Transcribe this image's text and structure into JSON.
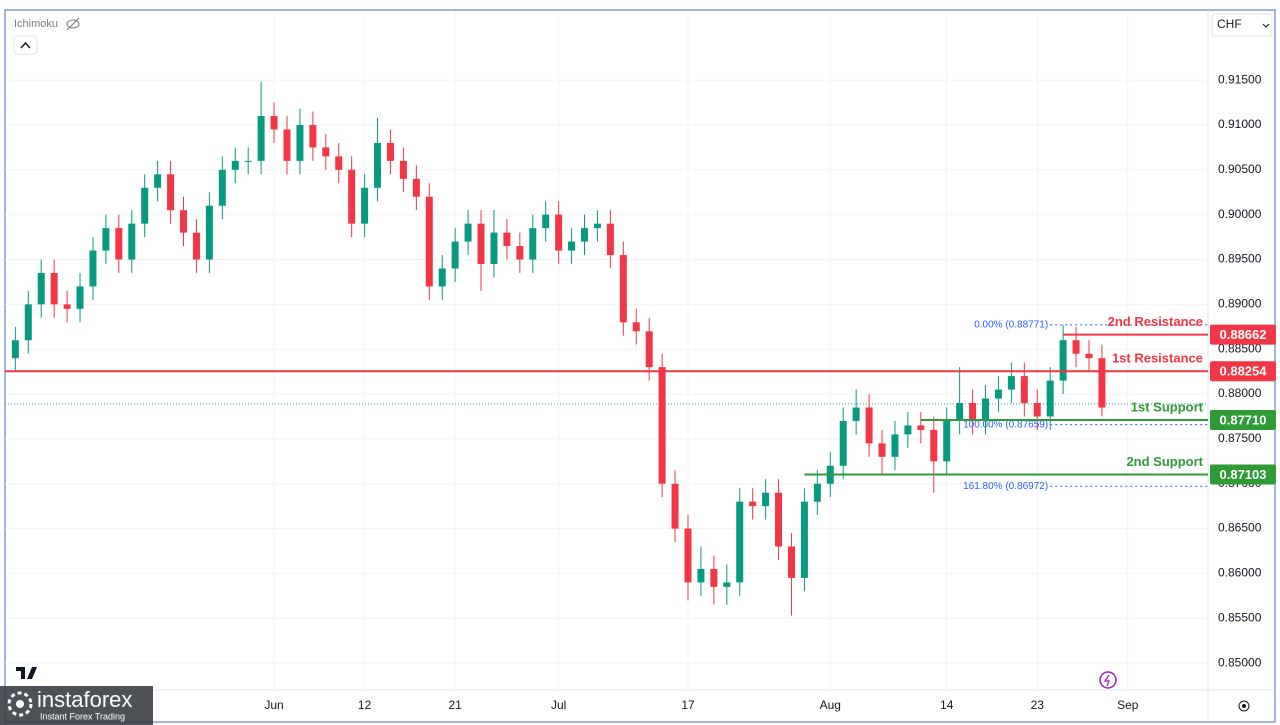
{
  "chart_data": {
    "type": "candlestick",
    "indicator": "Ichimoku",
    "currency": "CHF",
    "up_color": "#089981",
    "down_color": "#f23645",
    "xlim": [
      -0.8,
      92.2
    ],
    "ylim": [
      0.847,
      0.9226
    ],
    "xticks": [
      {
        "value": 20,
        "label": "Jun"
      },
      {
        "value": 27,
        "label": "12"
      },
      {
        "value": 34,
        "label": "21"
      },
      {
        "value": 42,
        "label": "Jul"
      },
      {
        "value": 52,
        "label": "17"
      },
      {
        "value": 63,
        "label": "Aug"
      },
      {
        "value": 72,
        "label": "14"
      },
      {
        "value": 79,
        "label": "23"
      },
      {
        "value": 86,
        "label": "Sep"
      }
    ],
    "yticks": [
      {
        "value": 0.85,
        "label": "0.85000"
      },
      {
        "value": 0.855,
        "label": "0.85500"
      },
      {
        "value": 0.86,
        "label": "0.86000"
      },
      {
        "value": 0.865,
        "label": "0.86500"
      },
      {
        "value": 0.87,
        "label": "0.87000"
      },
      {
        "value": 0.875,
        "label": "0.87500"
      },
      {
        "value": 0.88,
        "label": "0.88000"
      },
      {
        "value": 0.885,
        "label": "0.88500"
      },
      {
        "value": 0.89,
        "label": "0.89000"
      },
      {
        "value": 0.895,
        "label": "0.89500"
      },
      {
        "value": 0.9,
        "label": "0.90000"
      },
      {
        "value": 0.905,
        "label": "0.90500"
      },
      {
        "value": 0.91,
        "label": "0.91000"
      },
      {
        "value": 0.915,
        "label": "0.91500"
      }
    ],
    "x": [
      0,
      1,
      2,
      3,
      4,
      5,
      6,
      7,
      8,
      9,
      10,
      11,
      12,
      13,
      14,
      15,
      16,
      17,
      18,
      19,
      20,
      21,
      22,
      23,
      24,
      25,
      26,
      27,
      28,
      29,
      30,
      31,
      32,
      33,
      34,
      35,
      36,
      37,
      38,
      39,
      40,
      41,
      42,
      43,
      44,
      45,
      46,
      47,
      48,
      49,
      50,
      51,
      52,
      53,
      54,
      55,
      56,
      57,
      58,
      59,
      60,
      61,
      62,
      63,
      64,
      65,
      66,
      67,
      68,
      69,
      70,
      71,
      72,
      73,
      74,
      75,
      76,
      77,
      78,
      79,
      80,
      81,
      82,
      83,
      84
    ],
    "open": [
      0.884,
      0.886,
      0.89,
      0.8935,
      0.89,
      0.8895,
      0.892,
      0.896,
      0.8985,
      0.895,
      0.899,
      0.903,
      0.9045,
      0.9005,
      0.898,
      0.895,
      0.901,
      0.905,
      0.906,
      0.906,
      0.911,
      0.9095,
      0.906,
      0.91,
      0.9075,
      0.9065,
      0.905,
      0.899,
      0.903,
      0.908,
      0.906,
      0.904,
      0.902,
      0.892,
      0.894,
      0.897,
      0.899,
      0.8945,
      0.898,
      0.8965,
      0.895,
      0.8985,
      0.9,
      0.896,
      0.897,
      0.8985,
      0.899,
      0.8955,
      0.888,
      0.887,
      0.883,
      0.87,
      0.865,
      0.859,
      0.8605,
      0.8585,
      0.859,
      0.868,
      0.8675,
      0.869,
      0.863,
      0.8595,
      0.868,
      0.87,
      0.872,
      0.877,
      0.8785,
      0.8745,
      0.873,
      0.8755,
      0.8765,
      0.876,
      0.8725,
      0.877,
      0.879,
      0.877,
      0.8795,
      0.8805,
      0.882,
      0.879,
      0.8775,
      0.8815,
      0.886,
      0.8845,
      0.884
    ],
    "high": [
      0.8875,
      0.8915,
      0.895,
      0.895,
      0.8915,
      0.8935,
      0.8975,
      0.9,
      0.9,
      0.9005,
      0.9045,
      0.906,
      0.906,
      0.902,
      0.8995,
      0.9025,
      0.9065,
      0.9075,
      0.9075,
      0.9148,
      0.9125,
      0.911,
      0.9118,
      0.9115,
      0.909,
      0.908,
      0.9065,
      0.9045,
      0.9108,
      0.9095,
      0.9075,
      0.9055,
      0.9035,
      0.8955,
      0.8985,
      0.9005,
      0.9005,
      0.9005,
      0.8995,
      0.898,
      0.9,
      0.9015,
      0.9015,
      0.8985,
      0.9,
      0.9005,
      0.9005,
      0.897,
      0.8895,
      0.8885,
      0.8845,
      0.8715,
      0.8665,
      0.863,
      0.862,
      0.861,
      0.8695,
      0.8695,
      0.8705,
      0.8705,
      0.8645,
      0.8695,
      0.8715,
      0.8735,
      0.8785,
      0.8805,
      0.88,
      0.876,
      0.877,
      0.878,
      0.878,
      0.8775,
      0.8785,
      0.883,
      0.8805,
      0.881,
      0.882,
      0.8835,
      0.8835,
      0.8805,
      0.883,
      0.8877,
      0.8875,
      0.886,
      0.8855
    ],
    "low": [
      0.8825,
      0.8845,
      0.8885,
      0.8885,
      0.888,
      0.888,
      0.8905,
      0.8945,
      0.8935,
      0.8935,
      0.8975,
      0.9015,
      0.899,
      0.8965,
      0.8935,
      0.8935,
      0.8995,
      0.9035,
      0.9045,
      0.9045,
      0.908,
      0.9045,
      0.9045,
      0.906,
      0.905,
      0.9035,
      0.8975,
      0.8975,
      0.9015,
      0.9045,
      0.9025,
      0.9005,
      0.8905,
      0.8905,
      0.8925,
      0.8955,
      0.8915,
      0.893,
      0.895,
      0.8935,
      0.8935,
      0.897,
      0.8945,
      0.8945,
      0.8955,
      0.897,
      0.894,
      0.8865,
      0.8855,
      0.8815,
      0.8685,
      0.8635,
      0.857,
      0.8575,
      0.8565,
      0.8565,
      0.8575,
      0.866,
      0.866,
      0.8615,
      0.8553,
      0.858,
      0.8665,
      0.8685,
      0.8705,
      0.8755,
      0.873,
      0.871,
      0.8715,
      0.874,
      0.8745,
      0.869,
      0.871,
      0.8755,
      0.8755,
      0.8755,
      0.878,
      0.879,
      0.8775,
      0.876,
      0.876,
      0.88,
      0.883,
      0.8825,
      0.8775
    ],
    "close": [
      0.886,
      0.89,
      0.8935,
      0.89,
      0.8895,
      0.892,
      0.896,
      0.8985,
      0.895,
      0.899,
      0.903,
      0.9045,
      0.9005,
      0.898,
      0.895,
      0.901,
      0.905,
      0.906,
      0.906,
      0.911,
      0.9095,
      0.906,
      0.91,
      0.9075,
      0.9065,
      0.905,
      0.899,
      0.903,
      0.908,
      0.906,
      0.904,
      0.902,
      0.892,
      0.894,
      0.897,
      0.899,
      0.8945,
      0.898,
      0.8965,
      0.895,
      0.8985,
      0.9,
      0.896,
      0.897,
      0.8985,
      0.899,
      0.8955,
      0.888,
      0.887,
      0.883,
      0.87,
      0.865,
      0.859,
      0.8605,
      0.8585,
      0.859,
      0.868,
      0.8675,
      0.869,
      0.863,
      0.8595,
      0.868,
      0.87,
      0.872,
      0.877,
      0.8785,
      0.8745,
      0.873,
      0.8755,
      0.8765,
      0.876,
      0.8725,
      0.877,
      0.879,
      0.877,
      0.8795,
      0.8805,
      0.882,
      0.879,
      0.8775,
      0.8815,
      0.886,
      0.8845,
      0.884,
      0.8785
    ],
    "last_price": 0.8789,
    "levels": [
      {
        "name": "2nd Resistance",
        "value": 0.88662,
        "value_label": "0.88662",
        "color": "#f23645",
        "start": 81
      },
      {
        "name": "1st Resistance",
        "value": 0.88254,
        "value_label": "0.88254",
        "color": "#f23645",
        "start": -0.8
      },
      {
        "name": "1st Support",
        "value": 0.8771,
        "value_label": "0.87710",
        "color": "#2e9b36",
        "start": 70
      },
      {
        "name": "2nd Support",
        "value": 0.87103,
        "value_label": "0.87103",
        "color": "#2e9b36",
        "start": 61
      }
    ],
    "fib_levels": [
      {
        "label": "0.00% (0.88771)",
        "value": 0.88771,
        "start": 80
      },
      {
        "label": "100.00% (0.87659)",
        "value": 0.87659,
        "start": 80
      },
      {
        "label": "161.80% (0.86972)",
        "value": 0.86972,
        "start": 80
      }
    ],
    "watermark": {
      "brand": "instaforex",
      "tagline": "Instant Forex Trading"
    }
  }
}
